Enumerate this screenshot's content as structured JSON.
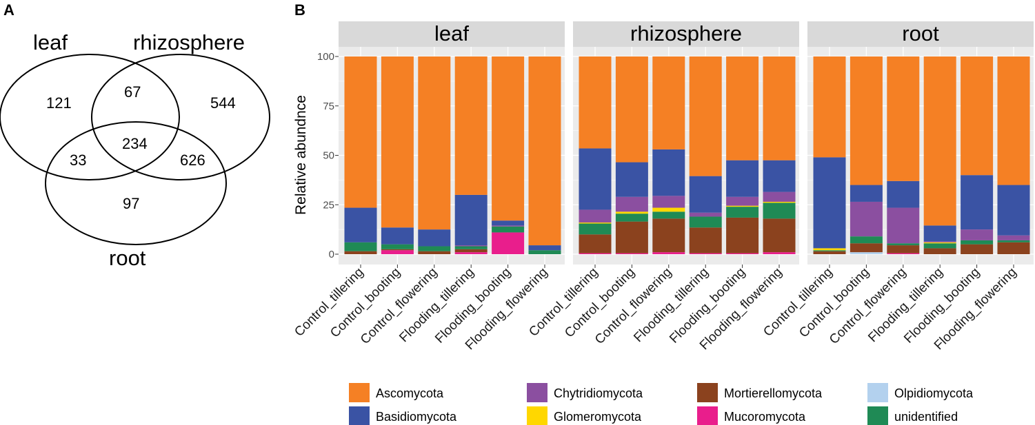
{
  "panels": {
    "a_label": "A",
    "b_label": "B"
  },
  "venn": {
    "sets": [
      "leaf",
      "rhizosphere",
      "root"
    ],
    "regions": {
      "leaf_only": "121",
      "leaf_rhizosphere": "67",
      "rhizosphere_only": "544",
      "leaf_root": "33",
      "all": "234",
      "rhizosphere_root": "626",
      "root_only": "97"
    }
  },
  "chart_data": {
    "type": "bar",
    "stacked": true,
    "facets": [
      "leaf",
      "rhizosphere",
      "root"
    ],
    "categories": [
      "Control_tillering",
      "Control_booting",
      "Control_flowering",
      "Flooding_tillering",
      "Flooding_booting",
      "Flooding_flowering"
    ],
    "ylabel": "Relative abundnce",
    "yticks": [
      0,
      25,
      50,
      75,
      100
    ],
    "ylim": [
      0,
      100
    ],
    "grid": true,
    "legend_position": "bottom",
    "stack_order": [
      "Olpidiomycota",
      "Mucoromycota",
      "Mortierellomycota",
      "unidentified",
      "Glomeromycota",
      "Chytridiomycota",
      "Basidiomycota",
      "Ascomycota"
    ],
    "colors": {
      "Ascomycota": "#F58024",
      "Basidiomycota": "#3A53A4",
      "Chytridiomycota": "#8B4FA0",
      "Glomeromycota": "#FFD700",
      "Mortierellomycota": "#8B421E",
      "Mucoromycota": "#E91E8C",
      "Olpidiomycota": "#B3D1EE",
      "unidentified": "#1F8A55"
    },
    "legend_items": [
      "Ascomycota",
      "Basidiomycota",
      "Chytridiomycota",
      "Glomeromycota",
      "Mortierellomycota",
      "Mucoromycota",
      "Olpidiomycota",
      "unidentified"
    ],
    "series": {
      "leaf": {
        "Olpidiomycota": [
          0,
          0,
          0,
          0,
          0,
          0
        ],
        "Mucoromycota": [
          0,
          2,
          0,
          1,
          11,
          0
        ],
        "Mortierellomycota": [
          1.5,
          0.5,
          1.5,
          1.5,
          0,
          0
        ],
        "unidentified": [
          4.5,
          2.5,
          2.5,
          1.5,
          3,
          2
        ],
        "Glomeromycota": [
          0,
          0,
          0,
          0,
          0,
          0
        ],
        "Chytridiomycota": [
          0,
          0,
          0,
          0.5,
          0.5,
          0
        ],
        "Basidiomycota": [
          17.5,
          8.5,
          8.5,
          25.5,
          2.5,
          2.5
        ],
        "Ascomycota": [
          76.5,
          86.5,
          87.5,
          70,
          83,
          95.5
        ]
      },
      "rhizosphere": {
        "Olpidiomycota": [
          0,
          0,
          0,
          0,
          0,
          0
        ],
        "Mucoromycota": [
          0.5,
          0.5,
          1,
          0.5,
          0.5,
          1
        ],
        "Mortierellomycota": [
          9.5,
          16,
          17,
          13,
          18,
          17
        ],
        "unidentified": [
          5.5,
          4,
          3.5,
          5.5,
          5.5,
          8
        ],
        "Glomeromycota": [
          0.5,
          1,
          2,
          0,
          0.5,
          0.5
        ],
        "Chytridiomycota": [
          6.5,
          7.5,
          6,
          2,
          4.5,
          5
        ],
        "Basidiomycota": [
          31,
          17.5,
          23.5,
          18.5,
          18.5,
          16
        ],
        "Ascomycota": [
          46.5,
          53.5,
          47,
          60.5,
          52.5,
          52.5
        ]
      },
      "root": {
        "Olpidiomycota": [
          0,
          1,
          0,
          0,
          0,
          0
        ],
        "Mucoromycota": [
          0,
          0,
          0.5,
          0,
          0,
          0
        ],
        "Mortierellomycota": [
          1.5,
          4.5,
          4,
          3,
          5,
          6
        ],
        "unidentified": [
          0.5,
          3.5,
          1,
          2.5,
          2,
          1
        ],
        "Glomeromycota": [
          1,
          0,
          0,
          0.5,
          0,
          0
        ],
        "Chytridiomycota": [
          0,
          17.5,
          18,
          0.5,
          5.5,
          2.5
        ],
        "Basidiomycota": [
          46,
          8.5,
          13.5,
          8,
          27.5,
          25.5
        ],
        "Ascomycota": [
          51,
          65,
          63,
          85.5,
          60,
          65
        ]
      }
    }
  }
}
